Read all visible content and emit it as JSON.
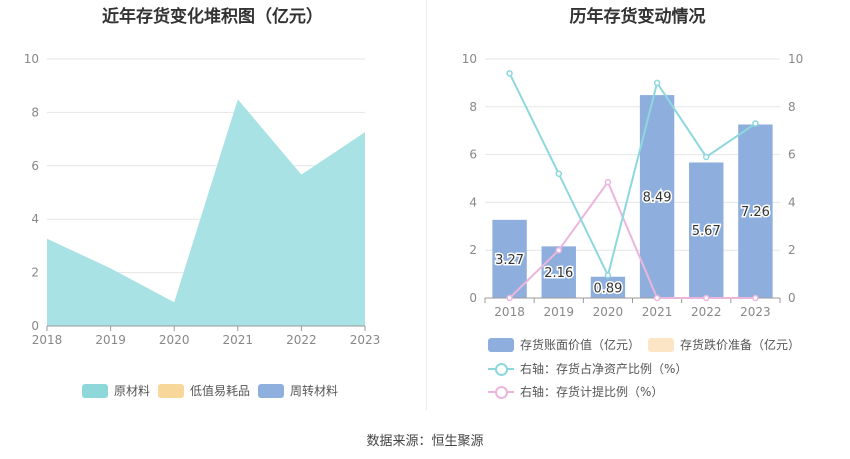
{
  "left_title": "近年存货变化堆积图（亿元）",
  "right_title": "历年存货变动情况",
  "source": "数据来源：恒生聚源",
  "colors": {
    "raw": "#a8e2e4",
    "raw_legend": "#8fd8da",
    "lowvalue": "#f8d89a",
    "turnover": "#8fb0de",
    "bar": "#8eaede",
    "bar_legend": "#8eaede",
    "writedown": "#fbe5c4",
    "ratio_line": "#8dd8de",
    "provision_line": "#ecb6dc"
  },
  "chart_data": [
    {
      "type": "area",
      "title": "近年存货变化堆积图（亿元）",
      "x": [
        "2018",
        "2019",
        "2020",
        "2021",
        "2022",
        "2023"
      ],
      "ylim": [
        0,
        10
      ],
      "yticks": [
        "0",
        "2",
        "4",
        "6",
        "8",
        "10"
      ],
      "series": [
        {
          "name": "原材料",
          "values": [
            3.27,
            2.16,
            0.89,
            8.49,
            5.67,
            7.26
          ]
        },
        {
          "name": "低值易耗品",
          "values": [
            0,
            0,
            0,
            0,
            0,
            0
          ]
        },
        {
          "name": "周转材料",
          "values": [
            0,
            0,
            0,
            0,
            0,
            0
          ]
        }
      ],
      "legend": "bottom",
      "grid": true
    },
    {
      "type": "bar",
      "title": "历年存货变动情况",
      "categories": [
        "2018",
        "2019",
        "2020",
        "2021",
        "2022",
        "2023"
      ],
      "ylim": [
        0,
        10
      ],
      "yticks": [
        "0",
        "2",
        "4",
        "6",
        "8",
        "10"
      ],
      "y2lim": [
        0,
        10
      ],
      "y2ticks": [
        "0",
        "2",
        "4",
        "6",
        "8",
        "10"
      ],
      "bar_labels": [
        "3.27",
        "2.16",
        "0.89",
        "8.49",
        "5.67",
        "7.26"
      ],
      "series": [
        {
          "name": "存货账面价值（亿元）",
          "values": [
            3.27,
            2.16,
            0.89,
            8.49,
            5.67,
            7.26
          ]
        },
        {
          "name": "存货跌价准备（亿元）",
          "values": [
            0,
            0,
            0,
            0,
            0,
            0
          ]
        },
        {
          "name": "右轴：存货占净资产比例（%）",
          "values": [
            9.4,
            5.2,
            0.95,
            9.0,
            5.9,
            7.3
          ]
        },
        {
          "name": "右轴：存货计提比例（%）",
          "values": [
            0,
            2.0,
            4.85,
            0,
            0,
            0
          ]
        }
      ],
      "legend": "bottom",
      "grid": true
    }
  ]
}
